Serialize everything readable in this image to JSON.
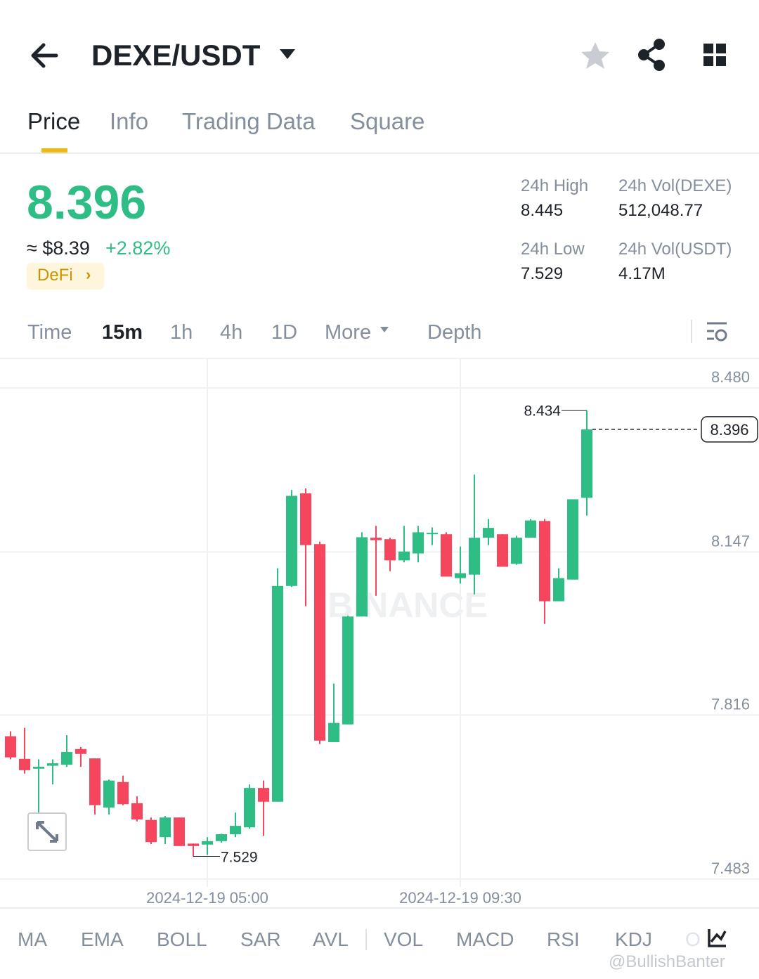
{
  "header": {
    "pair": "DEXE/USDT"
  },
  "tabs": [
    "Price",
    "Info",
    "Trading Data",
    "Square"
  ],
  "ticker": {
    "last": "8.396",
    "usd": "≈ $8.39",
    "change": "+2.82%",
    "tag": "DeFi"
  },
  "stats": [
    {
      "label": "24h High",
      "value": "8.445"
    },
    {
      "label": "24h Vol(DEXE)",
      "value": "512,048.77"
    },
    {
      "label": "24h Low",
      "value": "7.529"
    },
    {
      "label": "24h Vol(USDT)",
      "value": "4.17M"
    }
  ],
  "timeframes": [
    "Time",
    "15m",
    "1h",
    "4h",
    "1D",
    "More",
    "Depth"
  ],
  "indicators": [
    "MA",
    "EMA",
    "BOLL",
    "SAR",
    "AVL",
    "VOL",
    "MACD",
    "RSI",
    "KDJ",
    "O"
  ],
  "watermark": "@BullishBanter",
  "chart_data": {
    "type": "candlestick",
    "watermark": "BINANCE",
    "categories": [
      null,
      null,
      null,
      null,
      null,
      null,
      null,
      null,
      null,
      null,
      null,
      null,
      null,
      null,
      "2024-12-19 05:00",
      null,
      null,
      null,
      null,
      null,
      null,
      null,
      null,
      null,
      null,
      null,
      null,
      null,
      null,
      null,
      null,
      null,
      "2024-12-19 09:30",
      null,
      null,
      null,
      null,
      null,
      null,
      null,
      null,
      null
    ],
    "open": [
      7.773,
      7.727,
      7.707,
      7.713,
      7.715,
      7.747,
      7.728,
      7.628,
      7.68,
      7.637,
      7.603,
      7.568,
      7.608,
      7.555,
      7.553,
      7.56,
      7.574,
      7.588,
      7.668,
      7.64,
      8.078,
      8.266,
      8.163,
      7.761,
      7.797,
      8.016,
      8.176,
      8.173,
      8.13,
      8.144,
      8.183,
      8.183,
      8.094,
      8.101,
      8.176,
      8.183,
      8.123,
      8.176,
      8.21,
      8.047,
      8.091,
      8.257
    ],
    "high": [
      7.783,
      7.79,
      7.726,
      7.726,
      7.775,
      7.751,
      7.728,
      7.685,
      7.693,
      7.651,
      7.608,
      7.611,
      7.608,
      7.555,
      7.568,
      7.575,
      7.618,
      7.675,
      7.683,
      8.114,
      8.273,
      8.276,
      8.168,
      7.88,
      8.018,
      8.187,
      8.2,
      8.176,
      8.2,
      8.2,
      8.197,
      8.187,
      8.158,
      8.304,
      8.214,
      8.183,
      8.18,
      8.214,
      8.214,
      8.114,
      8.254,
      8.434
    ],
    "low": [
      7.726,
      7.697,
      7.618,
      7.675,
      7.711,
      7.711,
      7.614,
      7.614,
      7.633,
      7.6,
      7.554,
      7.554,
      7.55,
      7.529,
      7.532,
      7.557,
      7.568,
      7.585,
      7.571,
      7.64,
      8.076,
      8.037,
      7.757,
      7.761,
      7.797,
      8.016,
      8.058,
      8.108,
      8.126,
      8.126,
      8.161,
      8.097,
      8.083,
      8.061,
      8.161,
      8.117,
      8.121,
      8.176,
      8.001,
      8.047,
      8.091,
      8.221
    ],
    "close": [
      7.73,
      7.704,
      7.711,
      7.718,
      7.741,
      7.737,
      7.633,
      7.683,
      7.635,
      7.604,
      7.558,
      7.608,
      7.55,
      7.55,
      7.56,
      7.574,
      7.591,
      7.668,
      7.64,
      8.078,
      8.261,
      8.161,
      7.764,
      7.8,
      8.016,
      8.177,
      8.171,
      8.13,
      8.148,
      8.187,
      8.186,
      8.097,
      8.104,
      8.176,
      8.196,
      8.117,
      8.176,
      8.211,
      8.047,
      8.094,
      8.254,
      8.396
    ],
    "up_color": "#2ebd85",
    "down_color": "#f6465d",
    "ylim": [
      7.467,
      8.54
    ],
    "yticks": [
      {
        "value": 8.48,
        "label": "8.480"
      },
      8.147,
      7.816,
      7.483
    ],
    "grid": true
  }
}
